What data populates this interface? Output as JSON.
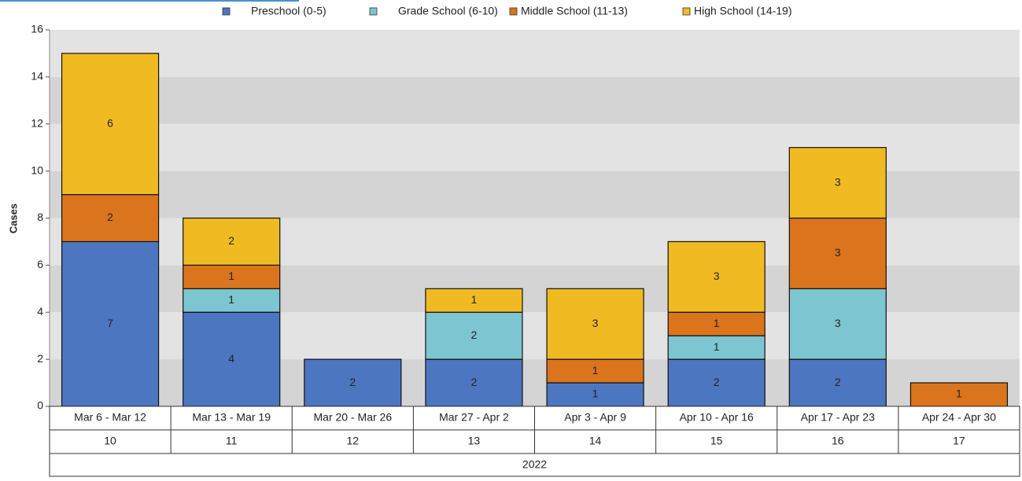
{
  "chart_data": {
    "type": "stacked_bar",
    "y_label": "Cases",
    "categories": [
      "Mar 6 - Mar 12",
      "Mar 13 - Mar 19",
      "Mar 20 - Mar 26",
      "Mar 27 - Apr 2",
      "Apr 3 - Apr 9",
      "Apr 10 - Apr 16",
      "Apr 17 - Apr 23",
      "Apr 24 - Apr 30"
    ],
    "week_numbers": [
      "10",
      "11",
      "12",
      "13",
      "14",
      "15",
      "16",
      "17"
    ],
    "year": "2022",
    "series": [
      {
        "name": "Preschool (0-5)",
        "color": "#4d76c0",
        "values": [
          7,
          4,
          2,
          2,
          1,
          2,
          2,
          null
        ]
      },
      {
        "name": "Grade School (6-10)",
        "color": "#7dc5d1",
        "values": [
          null,
          1,
          null,
          2,
          null,
          1,
          3,
          null
        ]
      },
      {
        "name": "Middle School (11-13)",
        "color": "#da741d",
        "values": [
          2,
          1,
          null,
          null,
          1,
          1,
          3,
          1
        ]
      },
      {
        "name": "High School (14-19)",
        "color": "#f0bb22",
        "values": [
          6,
          2,
          null,
          1,
          3,
          3,
          3,
          null
        ]
      }
    ],
    "ylim": [
      0,
      16
    ],
    "yticks": [
      0,
      2,
      4,
      6,
      8,
      10,
      12,
      14,
      16
    ],
    "grid": true,
    "legend": "top"
  }
}
